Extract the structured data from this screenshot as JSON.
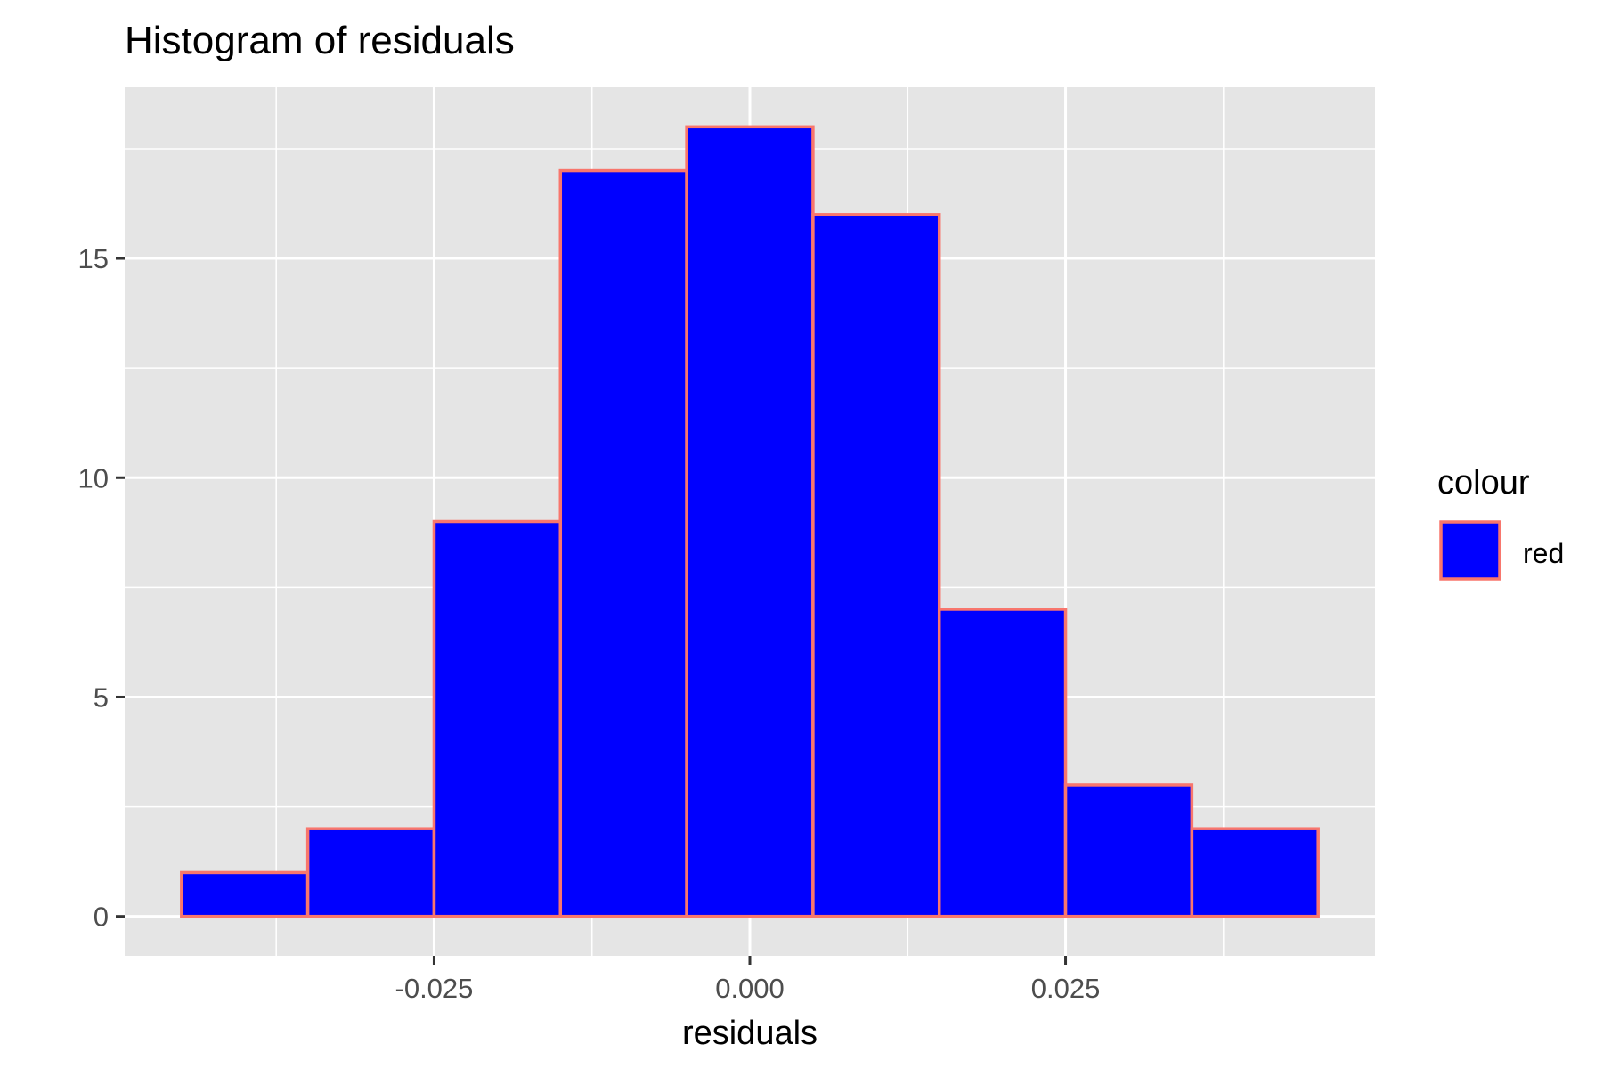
{
  "chart_data": {
    "type": "bar",
    "title": "Histogram of residuals",
    "xlabel": "residuals",
    "ylabel": "",
    "x_ticks": [
      {
        "value": -0.025,
        "label": "-0.025"
      },
      {
        "value": 0.0,
        "label": "0.000"
      },
      {
        "value": 0.025,
        "label": "0.025"
      }
    ],
    "y_ticks": [
      {
        "value": 0,
        "label": "0"
      },
      {
        "value": 5,
        "label": "5"
      },
      {
        "value": 10,
        "label": "10"
      },
      {
        "value": 15,
        "label": "15"
      }
    ],
    "xlim": [
      -0.0495,
      0.0495
    ],
    "ylim": [
      -0.9,
      18.9
    ],
    "bins": [
      {
        "x_min": -0.045,
        "x_max": -0.035,
        "count": 1
      },
      {
        "x_min": -0.035,
        "x_max": -0.025,
        "count": 2
      },
      {
        "x_min": -0.025,
        "x_max": -0.015,
        "count": 9
      },
      {
        "x_min": -0.015,
        "x_max": -0.005,
        "count": 17
      },
      {
        "x_min": -0.005,
        "x_max": 0.005,
        "count": 18
      },
      {
        "x_min": 0.005,
        "x_max": 0.015,
        "count": 16
      },
      {
        "x_min": 0.015,
        "x_max": 0.025,
        "count": 7
      },
      {
        "x_min": 0.025,
        "x_max": 0.035,
        "count": 3
      },
      {
        "x_min": 0.035,
        "x_max": 0.045,
        "count": 2
      }
    ],
    "grid": true,
    "legend": {
      "position": "right",
      "title": "colour",
      "entries": [
        {
          "label": "red"
        }
      ]
    },
    "colors": {
      "bar_fill": "#0000FF",
      "bar_outline": "#F8766D",
      "panel_background": "#E5E5E5",
      "grid": "#FFFFFF",
      "text": "#000000",
      "tick_text": "#4D4D4D"
    }
  }
}
